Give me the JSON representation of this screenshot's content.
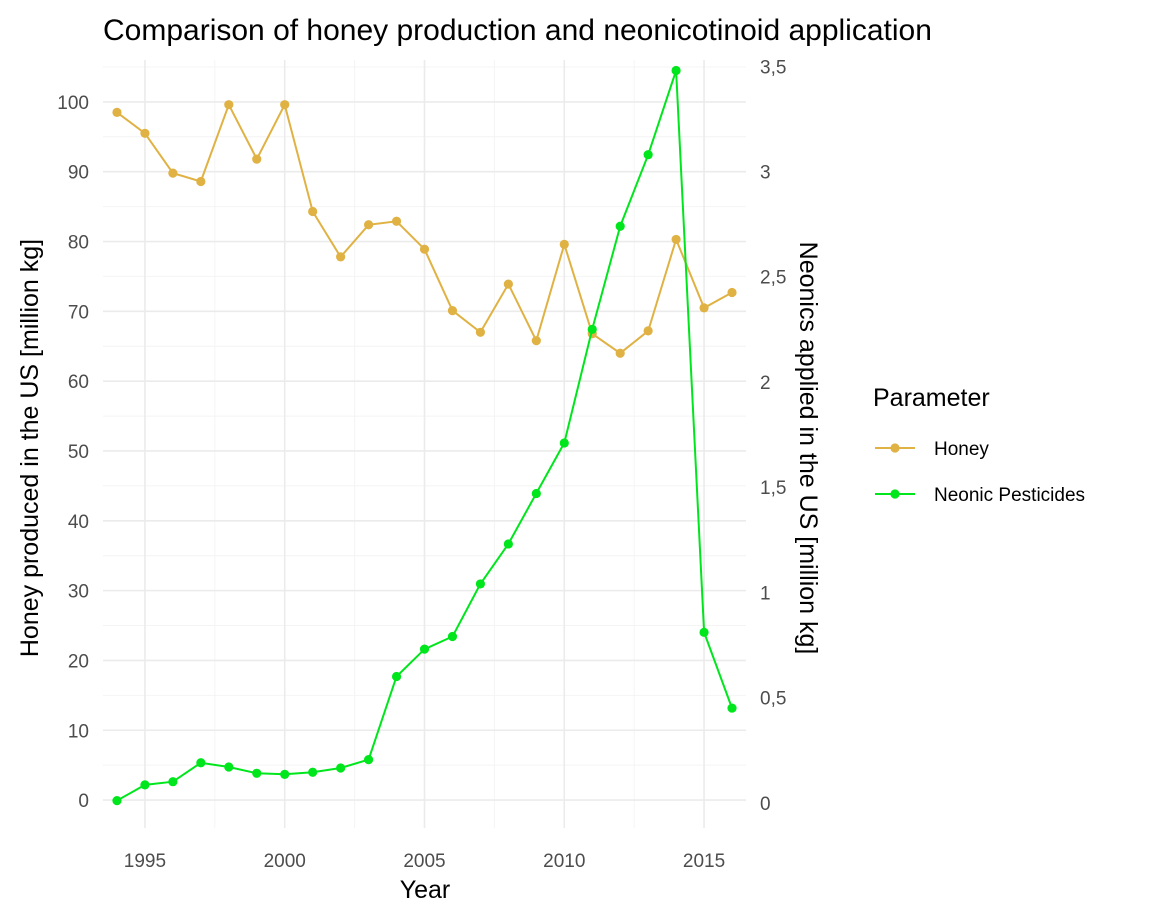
{
  "chart_data": {
    "type": "line",
    "title": "Comparison of honey production and neonicotinoid application",
    "xlabel": "Year",
    "ylabel": "Honey produced in the US [million kg]",
    "y2label": "Neonics applied in the US [million kg]",
    "xlim": [
      1993.5,
      2016.5
    ],
    "ylim": [
      -4,
      106
    ],
    "y2lim": [
      -0.12,
      3.53
    ],
    "x_ticks": [
      1995,
      2000,
      2005,
      2010,
      2015
    ],
    "y_ticks": [
      0,
      10,
      20,
      30,
      40,
      50,
      60,
      70,
      80,
      90,
      100
    ],
    "y2_ticks": [
      0,
      0.5,
      1,
      1.5,
      2,
      2.5,
      3,
      3.5
    ],
    "y2_tick_labels": [
      "0",
      "0,5",
      "1",
      "1,5",
      "2",
      "2,5",
      "3",
      "3,5"
    ],
    "grid": true,
    "legend": {
      "title": "Parameter",
      "position": "right",
      "entries": [
        "Honey",
        "Neonic Pesticides"
      ]
    },
    "series": [
      {
        "name": "Honey",
        "axis": "left",
        "color": "#E0B244",
        "x": [
          1994,
          1995,
          1996,
          1997,
          1998,
          1999,
          2000,
          2001,
          2002,
          2003,
          2004,
          2005,
          2006,
          2007,
          2008,
          2009,
          2010,
          2011,
          2012,
          2013,
          2014,
          2015,
          2016
        ],
        "values": [
          98.5,
          95.5,
          89.8,
          88.6,
          99.6,
          91.8,
          99.6,
          84.3,
          77.8,
          82.4,
          82.9,
          78.9,
          70.1,
          67.0,
          73.9,
          65.8,
          79.6,
          66.8,
          64.0,
          67.2,
          80.3,
          70.5,
          72.7
        ]
      },
      {
        "name": "Neonic Pesticides",
        "axis": "right",
        "color": "#00E61C",
        "x": [
          1994,
          1995,
          1996,
          1997,
          1998,
          1999,
          2000,
          2001,
          2002,
          2003,
          2004,
          2005,
          2006,
          2007,
          2008,
          2009,
          2010,
          2011,
          2012,
          2013,
          2014,
          2015,
          2016
        ],
        "values": [
          0.01,
          0.085,
          0.1,
          0.19,
          0.17,
          0.14,
          0.135,
          0.145,
          0.165,
          0.205,
          0.6,
          0.73,
          0.79,
          1.04,
          1.23,
          1.47,
          1.71,
          2.25,
          2.74,
          3.08,
          3.48,
          0.81,
          0.45
        ]
      }
    ]
  }
}
